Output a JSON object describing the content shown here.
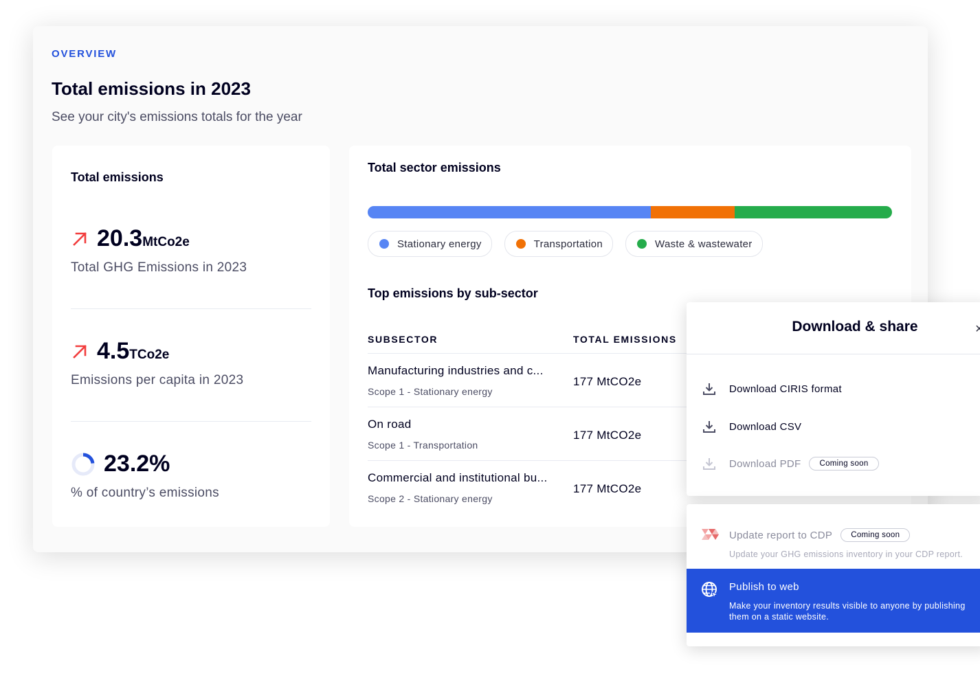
{
  "overview": {
    "eyebrow": "OVERVIEW",
    "title": "Total emissions in 2023",
    "subtitle": "See your city's emissions totals for the year"
  },
  "total_card": {
    "title": "Total emissions",
    "stats": [
      {
        "value": "20.3",
        "unit": "MtCo2e",
        "label": "Total GHG Emissions in 2023",
        "icon": "trend-up-arrow-icon"
      },
      {
        "value": "4.5",
        "unit": "TCo2e",
        "label": "Emissions per capita in 2023",
        "icon": "trend-up-arrow-icon"
      },
      {
        "value": "23.2%",
        "unit": "",
        "label": "% of country’s emissions",
        "icon": "donut-progress-icon",
        "fraction": 0.232
      }
    ]
  },
  "sector_card": {
    "title": "Total sector emissions",
    "sectors": [
      {
        "name": "Stationary energy",
        "share": 0.54,
        "color": "#5785f4"
      },
      {
        "name": "Transportation",
        "share": 0.16,
        "color": "#f17105"
      },
      {
        "name": "Waste & wastewater",
        "share": 0.3,
        "color": "#25ac4b"
      }
    ],
    "table_title": "Top emissions by sub-sector",
    "columns": [
      "SUBSECTOR",
      "TOTAL EMISSIONS"
    ],
    "rows": [
      {
        "name": "Manufacturing industries and c...",
        "scope": "Scope 1 - Stationary energy",
        "total": "177 MtCO2e"
      },
      {
        "name": "On road",
        "scope": "Scope 1 - Transportation",
        "total": "177 MtCO2e"
      },
      {
        "name": "Commercial and institutional bu...",
        "scope": "Scope 2 - Stationary energy",
        "total": "177 MtCO2e"
      }
    ]
  },
  "download_popup": {
    "title": "Download & share",
    "close_glyph": "×",
    "items": [
      {
        "label": "Download CIRIS format",
        "icon": "download-icon",
        "disabled": false
      },
      {
        "label": "Download CSV",
        "icon": "download-icon",
        "disabled": false
      },
      {
        "label": "Download PDF",
        "icon": "download-icon",
        "disabled": true,
        "badge": "Coming soon"
      }
    ]
  },
  "share_popup": {
    "cdp": {
      "label": "Update report to CDP",
      "badge": "Coming soon",
      "description": "Update your GHG emissions inventory in your CDP report.",
      "icon": "cdp-logo-icon"
    },
    "publish": {
      "label": "Publish to web",
      "description": "Make your inventory results visible to anyone by publishing them on a static website.",
      "icon": "globe-icon"
    }
  }
}
